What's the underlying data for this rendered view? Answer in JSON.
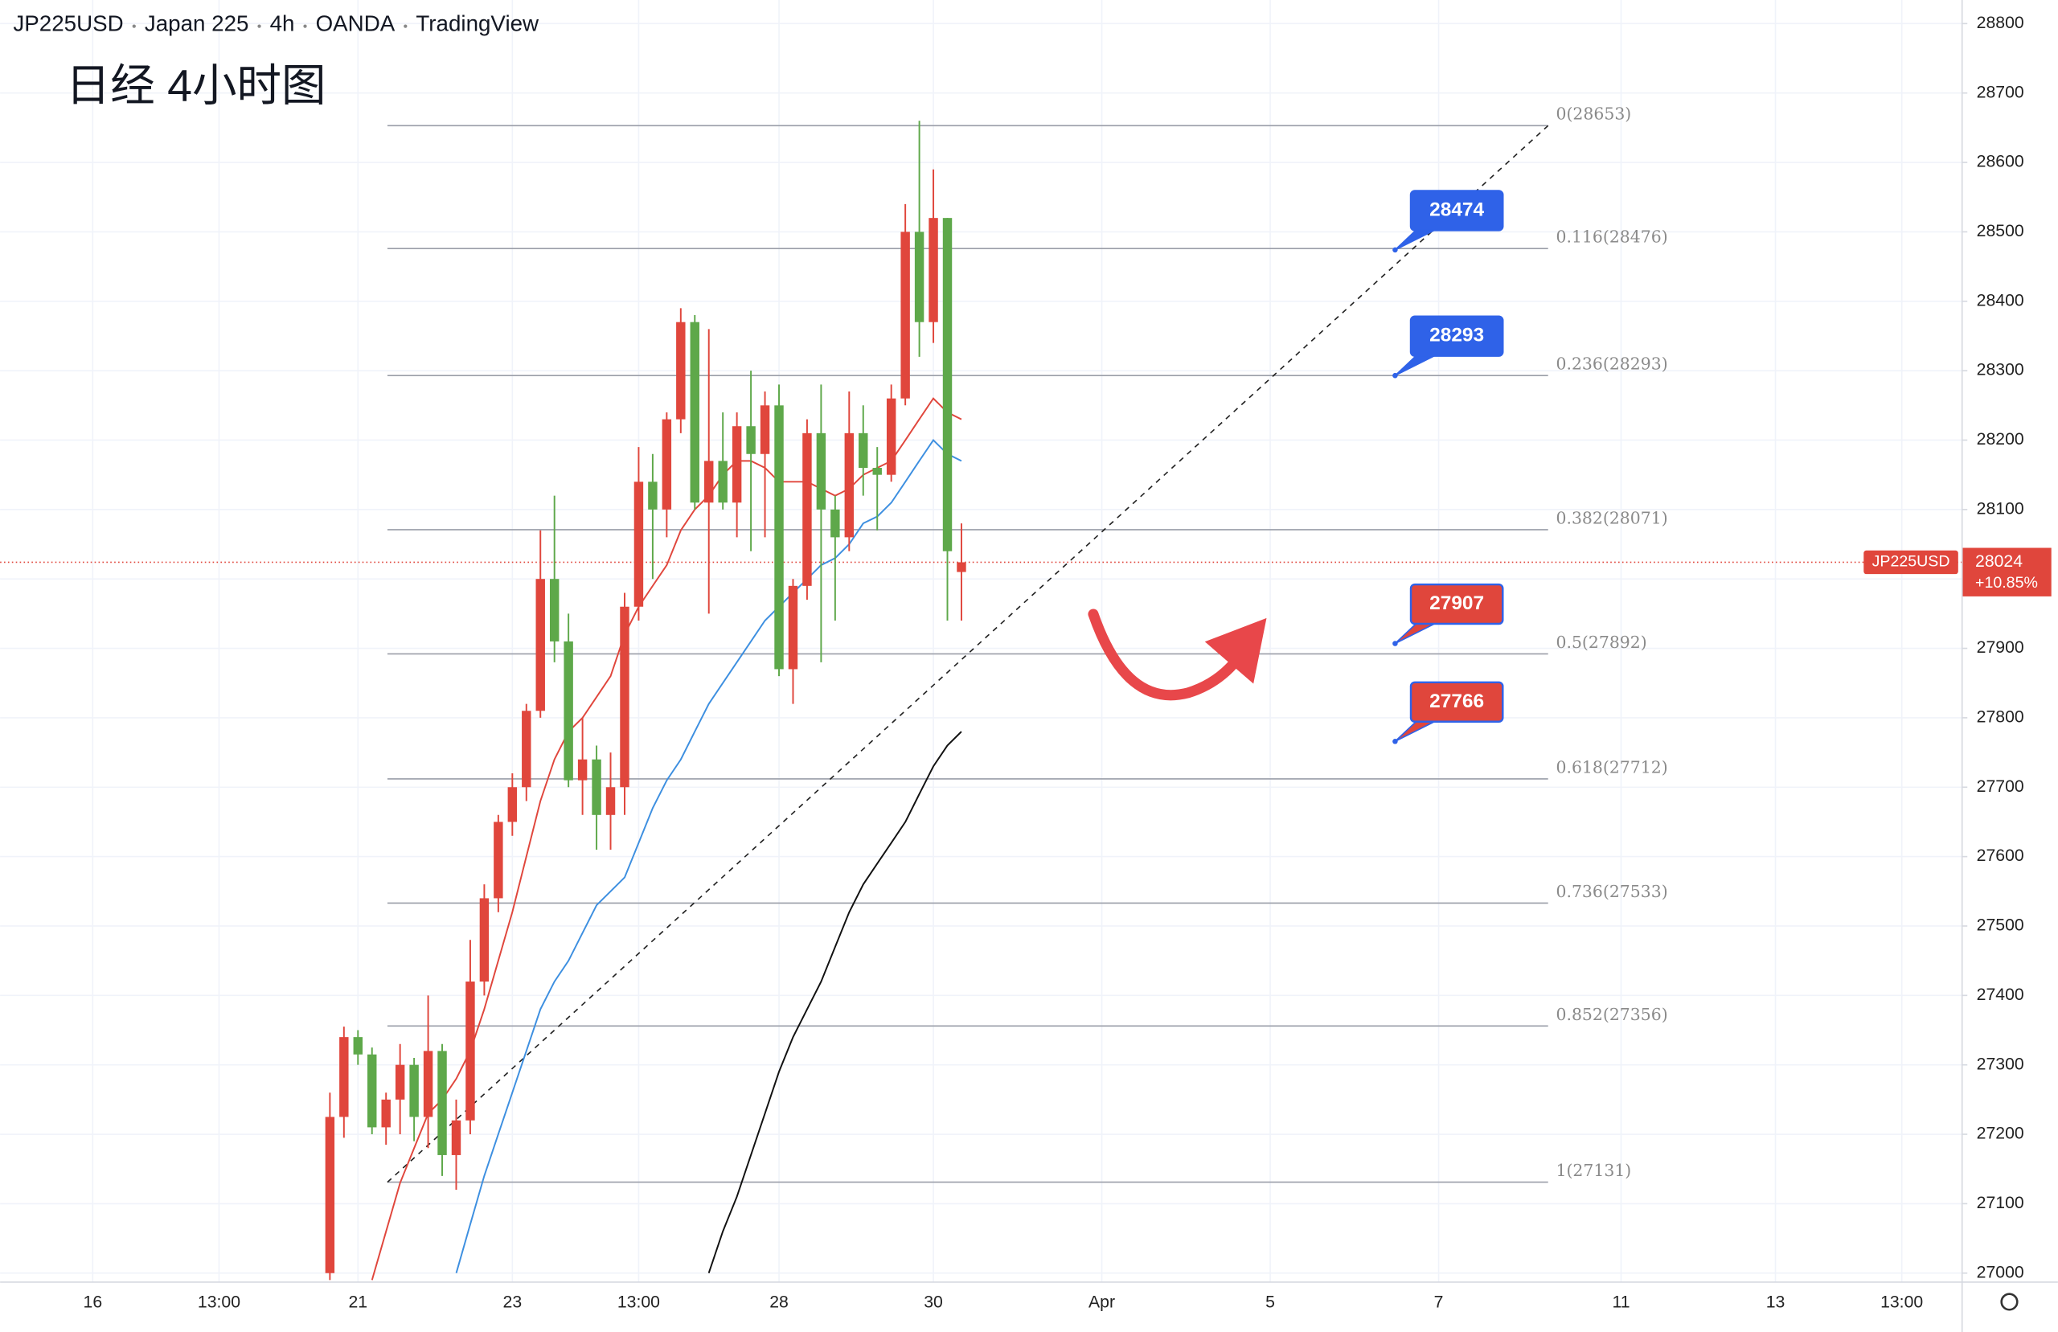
{
  "chart_data": {
    "type": "candlestick",
    "header": [
      "JP225USD",
      "Japan 225",
      "4h",
      "OANDA",
      "TradingView"
    ],
    "title": "日经 4小时图",
    "ylim": [
      26987,
      28834
    ],
    "yticks": [
      27000,
      27100,
      27200,
      27300,
      27400,
      27500,
      27600,
      27700,
      27800,
      27900,
      28000,
      28100,
      28200,
      28300,
      28400,
      28500,
      28600,
      28700,
      28800
    ],
    "xlim": [
      -23.5,
      116.3
    ],
    "xticks": [
      {
        "value": -16.9,
        "label": "16"
      },
      {
        "value": -7.9,
        "label": "13:00"
      },
      {
        "value": 2,
        "label": "21"
      },
      {
        "value": 13,
        "label": "23"
      },
      {
        "value": 22,
        "label": "13:00"
      },
      {
        "value": 32,
        "label": "28"
      },
      {
        "value": 43,
        "label": "30"
      },
      {
        "value": 55,
        "label": "Apr"
      },
      {
        "value": 67,
        "label": "5"
      },
      {
        "value": 79,
        "label": "7"
      },
      {
        "value": 92,
        "label": "11"
      },
      {
        "value": 103,
        "label": "13"
      },
      {
        "value": 112,
        "label": "13:00"
      }
    ],
    "grid": true,
    "up_color": "#e0463c",
    "down_color": "#5ea84a",
    "x": [
      0,
      1,
      2,
      3,
      4,
      5,
      6,
      7,
      8,
      9,
      10,
      11,
      12,
      13,
      14,
      15,
      16,
      17,
      18,
      19,
      20,
      21,
      22,
      23,
      24,
      25,
      26,
      27,
      28,
      29,
      30,
      31,
      32,
      33,
      34,
      35,
      36,
      37,
      38,
      39,
      40,
      41,
      42,
      43,
      44,
      45
    ],
    "open": [
      27000,
      27225,
      27340,
      27315,
      27210,
      27250,
      27300,
      27225,
      27320,
      27170,
      27220,
      27420,
      27540,
      27650,
      27700,
      27810,
      28000,
      27910,
      27710,
      27740,
      27660,
      27700,
      27960,
      28140,
      28100,
      28230,
      28370,
      28110,
      28170,
      28110,
      28220,
      28180,
      28250,
      27870,
      27990,
      28210,
      28100,
      28060,
      28210,
      28160,
      28150,
      28260,
      28500,
      28370,
      28520,
      28010
    ],
    "high": [
      27260,
      27355,
      27350,
      27325,
      27260,
      27330,
      27310,
      27400,
      27330,
      27250,
      27480,
      27560,
      27660,
      27720,
      27820,
      28070,
      28120,
      27950,
      27800,
      27760,
      27750,
      27980,
      28190,
      28180,
      28240,
      28390,
      28380,
      28360,
      28240,
      28240,
      28300,
      28270,
      28280,
      28000,
      28230,
      28280,
      28120,
      28270,
      28250,
      28190,
      28280,
      28540,
      28660,
      28590,
      28520,
      28080
    ],
    "low": [
      26990,
      27195,
      27300,
      27200,
      27185,
      27200,
      27190,
      27180,
      27140,
      27120,
      27200,
      27400,
      27520,
      27630,
      27680,
      27800,
      27880,
      27700,
      27660,
      27610,
      27610,
      27660,
      27940,
      28000,
      28060,
      28210,
      28100,
      27950,
      28100,
      28060,
      28040,
      28060,
      27860,
      27820,
      27970,
      27880,
      27940,
      28040,
      28120,
      28070,
      28140,
      28250,
      28320,
      28340,
      27940,
      27940
    ],
    "close": [
      27225,
      27340,
      27315,
      27210,
      27250,
      27300,
      27225,
      27320,
      27170,
      27220,
      27420,
      27540,
      27650,
      27700,
      27810,
      28000,
      27910,
      27710,
      27740,
      27660,
      27700,
      27960,
      28140,
      28100,
      28230,
      28370,
      28110,
      28170,
      28110,
      28220,
      28180,
      28250,
      27870,
      27990,
      28210,
      28100,
      28060,
      28210,
      28160,
      28150,
      28260,
      28500,
      28370,
      28520,
      28040,
      28024
    ],
    "moving_averages": [
      {
        "color": "#e0463c",
        "values": [
          null,
          null,
          null,
          26990,
          27060,
          27130,
          27180,
          27230,
          27250,
          27280,
          27320,
          27380,
          27450,
          27520,
          27600,
          27680,
          27740,
          27780,
          27800,
          27830,
          27860,
          27920,
          27960,
          27990,
          28020,
          28070,
          28100,
          28120,
          28150,
          28170,
          28170,
          28160,
          28140,
          28140,
          28140,
          28130,
          28120,
          28130,
          28150,
          28160,
          28170,
          28200,
          28230,
          28260,
          28240,
          28230
        ]
      },
      {
        "color": "#3d8fe0",
        "values": [
          null,
          null,
          null,
          null,
          null,
          null,
          null,
          null,
          null,
          27000,
          27070,
          27140,
          27200,
          27260,
          27320,
          27380,
          27420,
          27450,
          27490,
          27530,
          27550,
          27570,
          27620,
          27670,
          27710,
          27740,
          27780,
          27820,
          27850,
          27880,
          27910,
          27940,
          27960,
          27980,
          28000,
          28020,
          28030,
          28050,
          28080,
          28090,
          28110,
          28140,
          28170,
          28200,
          28180,
          28170
        ]
      },
      {
        "color": "#111111",
        "values": [
          null,
          null,
          null,
          null,
          null,
          null,
          null,
          null,
          null,
          null,
          null,
          null,
          null,
          null,
          null,
          null,
          null,
          null,
          null,
          null,
          null,
          null,
          null,
          null,
          null,
          null,
          null,
          27000,
          27060,
          27110,
          27170,
          27230,
          27290,
          27340,
          27380,
          27420,
          27470,
          27520,
          27560,
          27590,
          27620,
          27650,
          27690,
          27730,
          27760,
          27780
        ]
      }
    ],
    "fib_range": [
      4.1,
      86.8
    ],
    "fib_levels": [
      {
        "label": "0(28653)",
        "value": 28653
      },
      {
        "label": "0.116(28476)",
        "value": 28476
      },
      {
        "label": "0.236(28293)",
        "value": 28293
      },
      {
        "label": "0.382(28071)",
        "value": 28071
      },
      {
        "label": "0.5(27892)",
        "value": 27892
      },
      {
        "label": "0.618(27712)",
        "value": 27712
      },
      {
        "label": "0.736(27533)",
        "value": 27533
      },
      {
        "label": "0.852(27356)",
        "value": 27356
      },
      {
        "label": "1(27131)",
        "value": 27131
      }
    ],
    "trend_line": {
      "x": [
        4.1,
        86.8
      ],
      "y": [
        27131,
        28653
      ]
    },
    "callout_x": 75.9,
    "callouts": [
      {
        "value": 28474,
        "color": "#2f62e8"
      },
      {
        "value": 28293,
        "color": "#2f62e8"
      },
      {
        "value": 27907,
        "color": "#e0463c"
      },
      {
        "value": 27766,
        "color": "#e0463c"
      }
    ],
    "last_price": {
      "symbol": "JP225USD",
      "value": 28024,
      "change": "+10.85%",
      "color": "#e0463c"
    }
  }
}
